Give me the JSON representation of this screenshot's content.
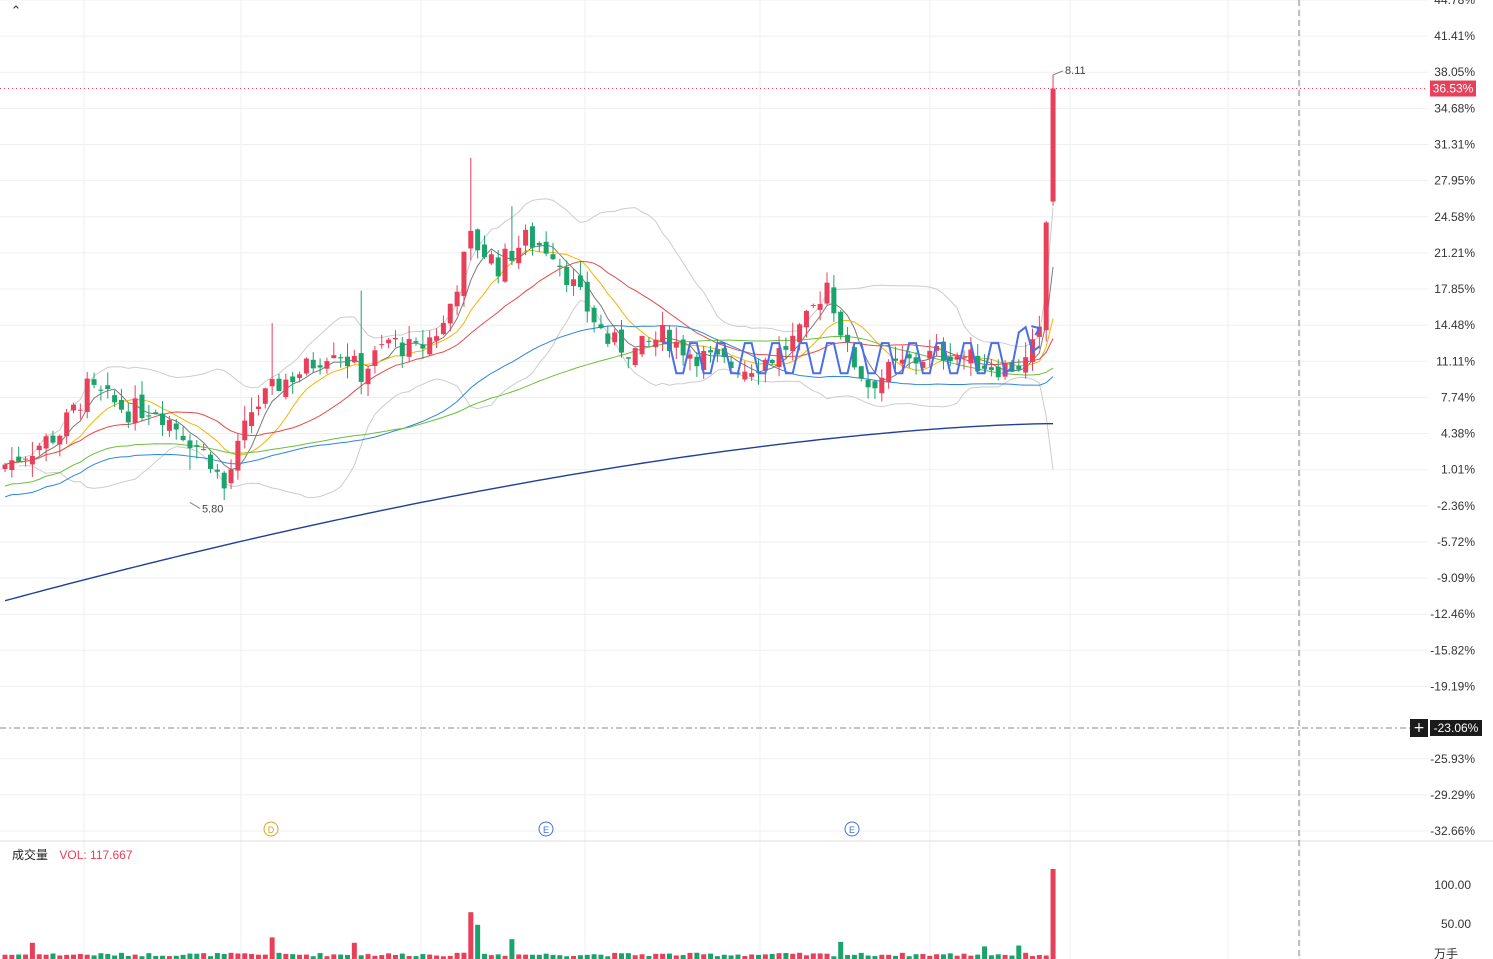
{
  "colors": {
    "up": "#e8405a",
    "down": "#1aa36b",
    "ma5": "#7a7a7a",
    "ma10": "#f5b400",
    "ma20": "#e84a4a",
    "ma60": "#2f86e0",
    "ma120": "#6cbf3b",
    "ma250": "#1f3f9a",
    "boll": "#cccccc",
    "drawing": "#4a6ee8",
    "grid": "#efefef",
    "crosshair": "#888888",
    "price_line": "#e8405a"
  },
  "ui": {
    "collapse_icon": "⌃",
    "crosshair_icon": "+",
    "volume_unit": "万手"
  },
  "chart_data": {
    "type": "candlestick",
    "price_axis": {
      "scale": "percent",
      "ticks": [
        "44.78%",
        "41.41%",
        "38.05%",
        "34.68%",
        "31.31%",
        "27.95%",
        "24.58%",
        "21.21%",
        "17.85%",
        "14.48%",
        "11.11%",
        "7.74%",
        "4.38%",
        "1.01%",
        "-2.36%",
        "-5.72%",
        "-9.09%",
        "-12.46%",
        "-15.82%",
        "-19.19%",
        "-25.93%",
        "-29.29%",
        "-32.66%"
      ],
      "range_pct": [
        -32.66,
        44.78
      ]
    },
    "current_price_label": "36.53%",
    "current_price_pct": 36.53,
    "crosshair_label": "-23.06%",
    "crosshair_pct": -23.06,
    "annotations": [
      {
        "text": "8.11",
        "kind": "high",
        "at_pct": 37.8
      },
      {
        "text": "5.80",
        "kind": "low",
        "at_pct": -2.6
      }
    ],
    "event_markers": [
      {
        "text": "D",
        "color": "#d9a21b"
      },
      {
        "text": "E",
        "color": "#3f6fd8"
      },
      {
        "text": "E",
        "color": "#3f6fd8"
      }
    ],
    "volume": {
      "title": "成交量",
      "value_label": "VOL: 117.667",
      "ticks": [
        "100.00",
        "50.00"
      ],
      "unit": "万手",
      "last_value": 117.667
    }
  }
}
